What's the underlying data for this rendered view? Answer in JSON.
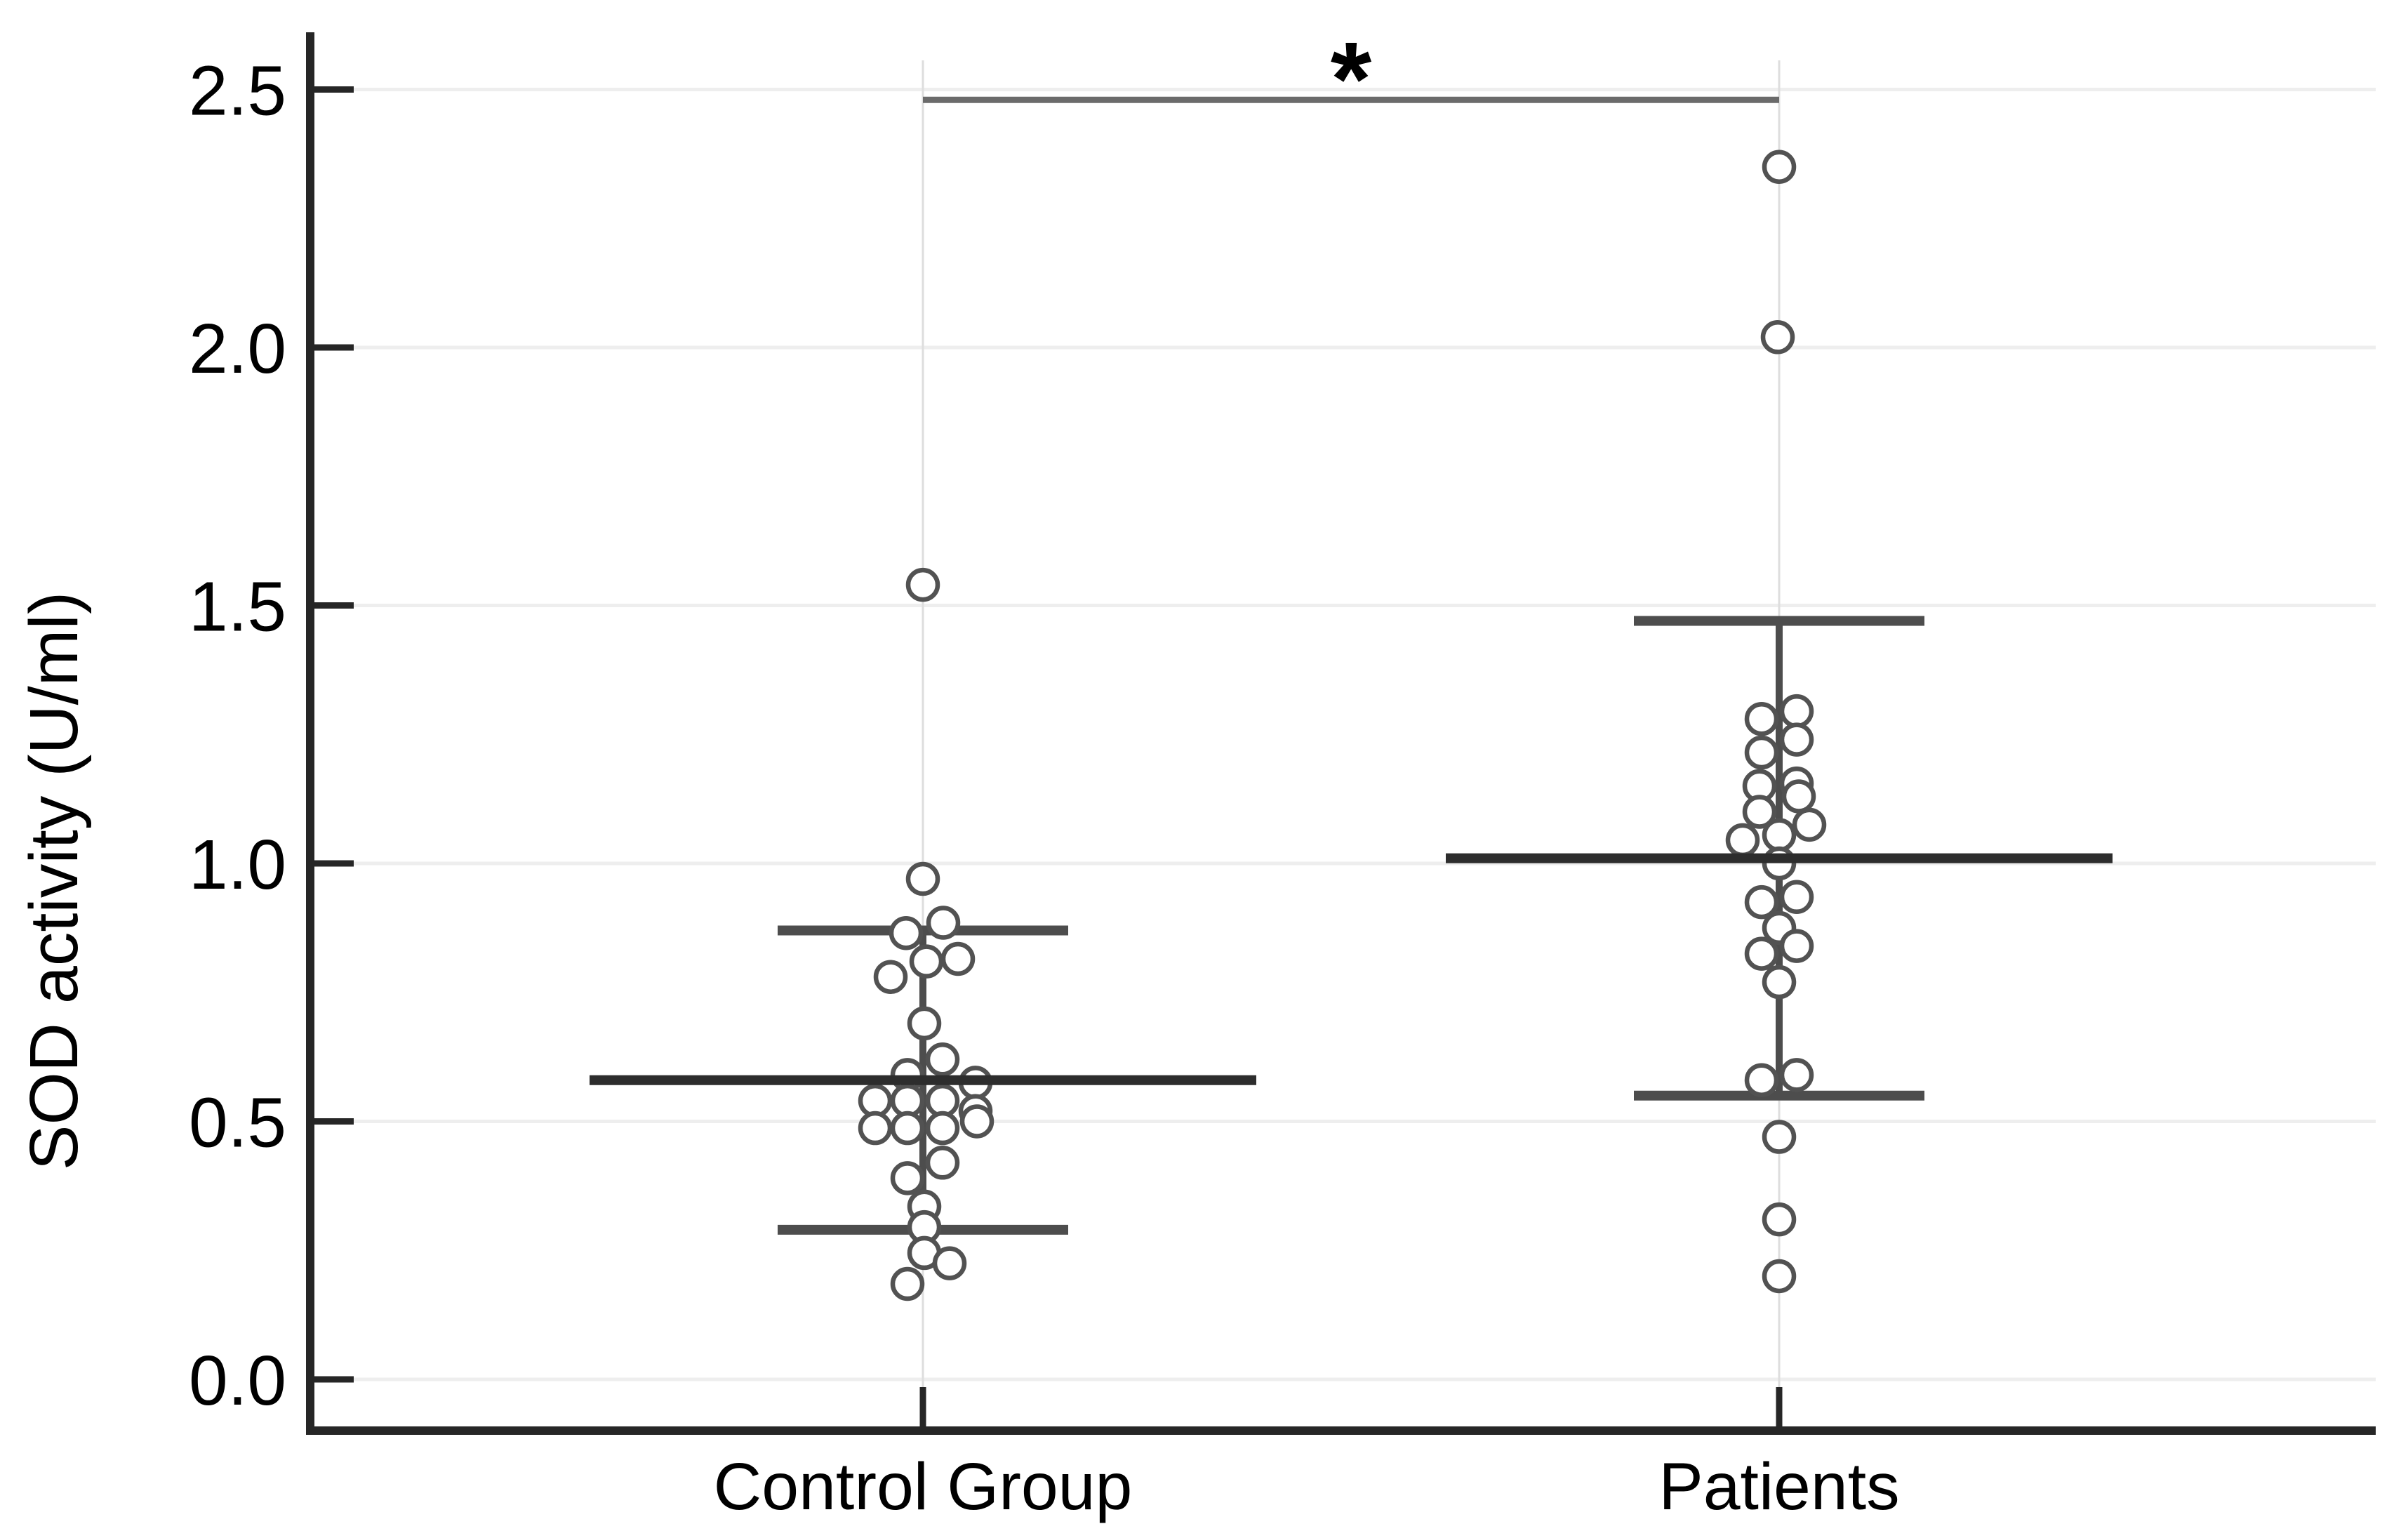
{
  "chart_data": {
    "type": "scatter",
    "subtype": "dot-plot-with-mean-sd",
    "title": "",
    "ylabel": "SOD activity (U/ml)",
    "xlabel": "",
    "ylim": [
      -0.1,
      2.6
    ],
    "yticks": [
      0.0,
      0.5,
      1.0,
      1.5,
      2.0,
      2.5
    ],
    "ytick_labels": [
      "0.0",
      "0.5",
      "1.0",
      "1.5",
      "2.0",
      "2.5"
    ],
    "grid": true,
    "legend": "none",
    "categories": [
      "Control Group",
      "Patients"
    ],
    "significance": {
      "label": "*",
      "between": [
        "Control Group",
        "Patients"
      ],
      "bar_value": 2.48
    },
    "series": [
      {
        "name": "Control Group",
        "mean": 0.58,
        "sd_high": 0.87,
        "sd_low": 0.29,
        "points": [
          {
            "v": 1.54,
            "dx": 0
          },
          {
            "v": 0.97,
            "dx": 0
          },
          {
            "v": 0.885,
            "dx": 29
          },
          {
            "v": 0.865,
            "dx": -24
          },
          {
            "v": 0.815,
            "dx": 50
          },
          {
            "v": 0.81,
            "dx": 5
          },
          {
            "v": 0.78,
            "dx": -46
          },
          {
            "v": 0.69,
            "dx": 2
          },
          {
            "v": 0.62,
            "dx": 28
          },
          {
            "v": 0.59,
            "dx": -22
          },
          {
            "v": 0.575,
            "dx": 75
          },
          {
            "v": 0.54,
            "dx": -68
          },
          {
            "v": 0.54,
            "dx": -22
          },
          {
            "v": 0.54,
            "dx": 28
          },
          {
            "v": 0.52,
            "dx": 75
          },
          {
            "v": 0.5,
            "dx": 77
          },
          {
            "v": 0.487,
            "dx": -68
          },
          {
            "v": 0.487,
            "dx": -22
          },
          {
            "v": 0.487,
            "dx": 28
          },
          {
            "v": 0.42,
            "dx": 28
          },
          {
            "v": 0.39,
            "dx": -22
          },
          {
            "v": 0.335,
            "dx": 2
          },
          {
            "v": 0.295,
            "dx": 2
          },
          {
            "v": 0.245,
            "dx": 2
          },
          {
            "v": 0.225,
            "dx": 38
          },
          {
            "v": 0.185,
            "dx": -22
          }
        ]
      },
      {
        "name": "Patients",
        "mean": 1.01,
        "sd_high": 1.47,
        "sd_low": 0.55,
        "points": [
          {
            "v": 2.35,
            "dx": 0
          },
          {
            "v": 2.02,
            "dx": -2
          },
          {
            "v": 1.295,
            "dx": 25
          },
          {
            "v": 1.28,
            "dx": -25
          },
          {
            "v": 1.24,
            "dx": 25
          },
          {
            "v": 1.215,
            "dx": -25
          },
          {
            "v": 1.155,
            "dx": 25
          },
          {
            "v": 1.15,
            "dx": -28
          },
          {
            "v": 1.13,
            "dx": 28
          },
          {
            "v": 1.1,
            "dx": -28
          },
          {
            "v": 1.075,
            "dx": 43
          },
          {
            "v": 1.055,
            "dx": 0
          },
          {
            "v": 1.045,
            "dx": -52
          },
          {
            "v": 1.0,
            "dx": 0
          },
          {
            "v": 0.935,
            "dx": 25
          },
          {
            "v": 0.925,
            "dx": -25
          },
          {
            "v": 0.875,
            "dx": 0
          },
          {
            "v": 0.84,
            "dx": 25
          },
          {
            "v": 0.825,
            "dx": -25
          },
          {
            "v": 0.77,
            "dx": 0
          },
          {
            "v": 0.59,
            "dx": 25
          },
          {
            "v": 0.58,
            "dx": -25
          },
          {
            "v": 0.47,
            "dx": 0
          },
          {
            "v": 0.31,
            "dx": 0
          },
          {
            "v": 0.2,
            "dx": 0
          }
        ]
      }
    ],
    "colors": {
      "background": "#ffffff",
      "axis": "#262626",
      "tick_label": "#000000",
      "gridline": "#eeeeee",
      "category_line": "#dedede",
      "mean_line": "#2d2d2d",
      "sd_line": "#4d4d4d",
      "point_stroke": "#525252",
      "point_fill": "#ffffff",
      "sig_bracket": "#6b6b6b",
      "sig_label": "#000000"
    }
  }
}
